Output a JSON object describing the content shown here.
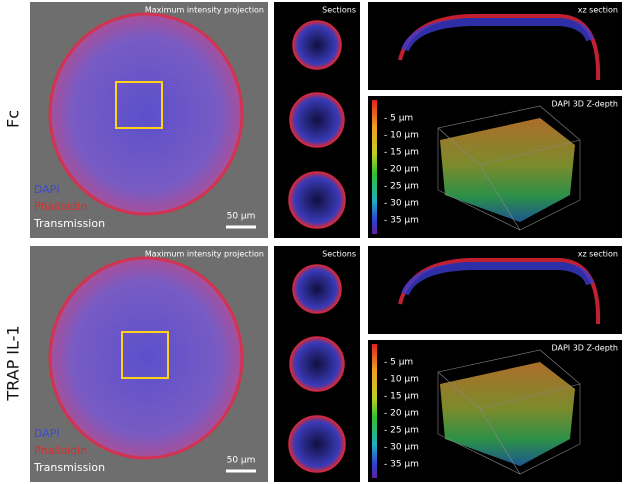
{
  "rows": [
    {
      "label": "Fc",
      "projection": {
        "title": "Maximum intensity projection",
        "legend": [
          "DAPI",
          "Phalloidin",
          "Transmission"
        ],
        "scale_bar": "50 µm"
      },
      "sections_title": "Sections",
      "xz_title": "xz section",
      "depth": {
        "title": "DAPI 3D Z-depth",
        "labels": [
          "- 5 µm",
          "- 10 µm",
          "- 15 µm",
          "- 20 µm",
          "- 25 µm",
          "- 30 µm",
          "- 35 µm"
        ]
      }
    },
    {
      "label": "TRAP IL-1",
      "projection": {
        "title": "Maximum intensity projection",
        "legend": [
          "DAPI",
          "Phalloidin",
          "Transmission"
        ],
        "scale_bar": "50 µm"
      },
      "sections_title": "Sections",
      "xz_title": "xz section",
      "depth": {
        "title": "DAPI 3D Z-depth",
        "labels": [
          "- 5 µm",
          "- 10 µm",
          "- 15 µm",
          "- 20 µm",
          "- 25 µm",
          "- 30 µm",
          "- 35 µm"
        ]
      }
    }
  ]
}
